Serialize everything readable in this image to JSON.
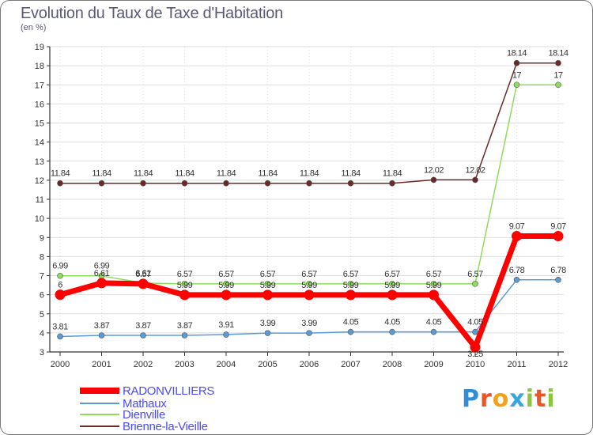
{
  "title": "Evolution du Taux de Taxe d'Habitation",
  "unit": "(en %)",
  "logo_text": "Proxiti",
  "chart_data": {
    "type": "line",
    "title": "Evolution du Taux de Taxe d'Habitation",
    "ylabel": "(en %)",
    "xlabel": "",
    "categories": [
      "2000",
      "2001",
      "2002",
      "2003",
      "2004",
      "2005",
      "2006",
      "2007",
      "2008",
      "2009",
      "2010",
      "2011",
      "2012"
    ],
    "ylim": [
      3,
      19
    ],
    "yticks": [
      "3",
      "4",
      "5",
      "6",
      "7",
      "8",
      "9",
      "10",
      "11",
      "12",
      "13",
      "14",
      "15",
      "16",
      "17",
      "18",
      "19"
    ],
    "series": [
      {
        "name": "RADONVILLIERS",
        "color": "#ff0000",
        "values": [
          6,
          6.61,
          6.57,
          5.99,
          5.99,
          5.99,
          5.99,
          5.99,
          5.99,
          5.99,
          3.25,
          9.07,
          9.07
        ],
        "labels": [
          "6",
          "6.61",
          "6.57",
          "5.99",
          "5.99",
          "5.99",
          "5.99",
          "5.99",
          "5.99",
          "5.99",
          "3.25",
          "9.07",
          "9.07"
        ]
      },
      {
        "name": "Mathaux",
        "color": "#5b9bd5",
        "values": [
          3.81,
          3.87,
          3.87,
          3.87,
          3.91,
          3.99,
          3.99,
          4.05,
          4.05,
          4.05,
          4.05,
          6.78,
          6.78
        ],
        "labels": [
          "3.81",
          "3.87",
          "3.87",
          "3.87",
          "3.91",
          "3.99",
          "3.99",
          "4.05",
          "4.05",
          "4.05",
          "4.05",
          "6.78",
          "6.78"
        ]
      },
      {
        "name": "Dienville",
        "color": "#8fdc5a",
        "values": [
          6.99,
          6.99,
          6.61,
          6.57,
          6.57,
          6.57,
          6.57,
          6.57,
          6.57,
          6.57,
          6.57,
          17,
          17
        ],
        "labels": [
          "6.99",
          "6.99",
          "6.61",
          "6.57",
          "6.57",
          "6.57",
          "6.57",
          "6.57",
          "6.57",
          "6.57",
          "6.57",
          "17",
          "17"
        ]
      },
      {
        "name": "Brienne-la-Vieille",
        "color": "#6b2a2a",
        "values": [
          11.84,
          11.84,
          11.84,
          11.84,
          11.84,
          11.84,
          11.84,
          11.84,
          11.84,
          12.02,
          12.02,
          18.14,
          18.14
        ],
        "labels": [
          "11.84",
          "11.84",
          "11.84",
          "11.84",
          "11.84",
          "11.84",
          "11.84",
          "11.84",
          "11.84",
          "12.02",
          "12.02",
          "18.14",
          "18.14"
        ]
      }
    ]
  }
}
